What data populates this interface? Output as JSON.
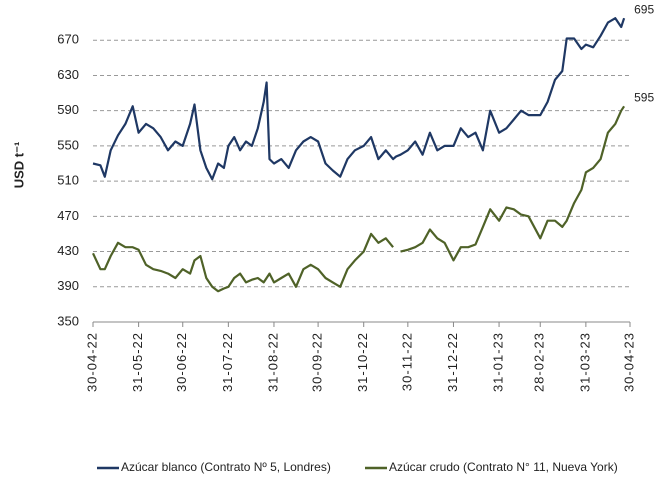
{
  "chart_data": {
    "type": "line",
    "y_label": "USD t⁻¹",
    "x": [
      "30-04-22",
      "05-05-22",
      "08-05-22",
      "12-05-22",
      "17-05-22",
      "22-05-22",
      "27-05-22",
      "31-05-22",
      "05-06-22",
      "10-06-22",
      "15-06-22",
      "20-06-22",
      "25-06-22",
      "30-06-22",
      "05-07-22",
      "08-07-22",
      "12-07-22",
      "16-07-22",
      "20-07-22",
      "24-07-22",
      "28-07-22",
      "31-07-22",
      "04-08-22",
      "08-08-22",
      "12-08-22",
      "16-08-22",
      "20-08-22",
      "24-08-22",
      "26-08-22",
      "28-08-22",
      "31-08-22",
      "05-09-22",
      "10-09-22",
      "15-09-22",
      "20-09-22",
      "25-09-22",
      "30-09-22",
      "05-10-22",
      "10-10-22",
      "15-10-22",
      "20-10-22",
      "25-10-22",
      "31-10-22",
      "05-11-22",
      "10-11-22",
      "15-11-22",
      "20-11-22",
      "22-11-22",
      "25-11-22",
      "30-11-22",
      "05-12-22",
      "10-12-22",
      "15-12-22",
      "20-12-22",
      "25-12-22",
      "31-12-22",
      "05-01-23",
      "10-01-23",
      "15-01-23",
      "20-01-23",
      "25-01-23",
      "31-01-23",
      "05-02-23",
      "10-02-23",
      "15-02-23",
      "20-02-23",
      "28-02-23",
      "05-03-23",
      "10-03-23",
      "15-03-23",
      "18-03-23",
      "23-03-23",
      "28-03-23",
      "31-03-23",
      "05-04-23",
      "10-04-23",
      "15-04-23",
      "20-04-23",
      "24-04-23",
      "26-04-23"
    ],
    "series": [
      {
        "name": "Azúcar blanco (Contrato Nº 5, Londres)",
        "color": "#1f3864",
        "values": [
          530,
          528,
          515,
          545,
          562,
          575,
          595,
          565,
          575,
          570,
          560,
          545,
          555,
          550,
          575,
          597,
          545,
          525,
          512,
          530,
          525,
          550,
          560,
          545,
          555,
          550,
          570,
          600,
          622,
          535,
          530,
          535,
          525,
          545,
          555,
          560,
          555,
          530,
          522,
          515,
          535,
          545,
          550,
          560,
          535,
          545,
          535,
          538,
          540,
          545,
          555,
          540,
          565,
          545,
          550,
          550,
          570,
          560,
          565,
          545,
          590,
          565,
          570,
          580,
          590,
          585,
          585,
          600,
          625,
          635,
          672,
          672,
          660,
          665,
          662,
          675,
          690,
          695,
          685,
          695
        ]
      },
      {
        "name": "Azúcar crudo (Contrato N° 11, Nueva York)",
        "color": "#4f6228",
        "values": [
          428,
          410,
          410,
          425,
          440,
          435,
          435,
          432,
          415,
          410,
          408,
          405,
          400,
          410,
          405,
          420,
          425,
          400,
          390,
          385,
          388,
          390,
          400,
          405,
          395,
          398,
          400,
          395,
          400,
          405,
          395,
          400,
          405,
          390,
          410,
          415,
          410,
          400,
          395,
          390,
          410,
          420,
          430,
          450,
          440,
          445,
          435,
          null,
          430,
          432,
          435,
          440,
          455,
          445,
          440,
          420,
          435,
          435,
          438,
          458,
          478,
          465,
          480,
          478,
          472,
          470,
          445,
          465,
          465,
          458,
          465,
          485,
          500,
          520,
          525,
          535,
          565,
          575,
          590,
          595
        ]
      }
    ],
    "xlim": [
      "30-04-22",
      "30-04-23"
    ],
    "xticks": [
      "30-04-22",
      "31-05-22",
      "30-06-22",
      "31-07-22",
      "31-08-22",
      "30-09-22",
      "31-10-22",
      "30-11-22",
      "31-12-22",
      "31-01-23",
      "28-02-23",
      "31-03-23",
      "30-04-23"
    ],
    "ylim": [
      350,
      710
    ],
    "yticks": [
      350,
      390,
      430,
      470,
      510,
      550,
      590,
      630,
      670
    ],
    "grid": true,
    "legend": "bottom"
  }
}
